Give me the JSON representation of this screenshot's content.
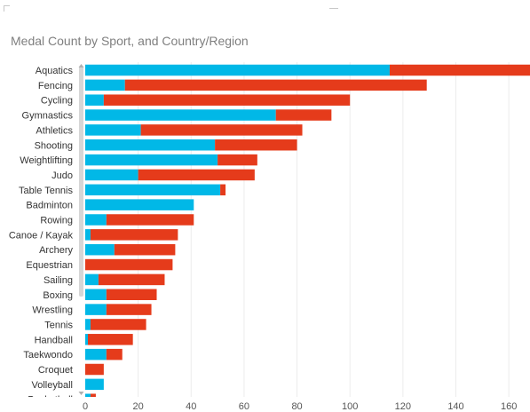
{
  "chart_data": {
    "type": "bar",
    "orientation": "horizontal",
    "stacked": true,
    "title": "Medal Count by Sport, and Country/Region",
    "categories": [
      "Aquatics",
      "Fencing",
      "Cycling",
      "Gymnastics",
      "Athletics",
      "Shooting",
      "Weightlifting",
      "Judo",
      "Table Tennis",
      "Badminton",
      "Rowing",
      "Canoe / Kayak",
      "Archery",
      "Equestrian",
      "Sailing",
      "Boxing",
      "Wrestling",
      "Tennis",
      "Handball",
      "Taekwondo",
      "Croquet",
      "Volleyball",
      "Basketball"
    ],
    "series": [
      {
        "values": [
          115,
          15,
          7,
          72,
          21,
          49,
          50,
          20,
          51,
          41,
          8,
          2,
          11,
          0,
          5,
          8,
          8,
          2,
          1,
          8,
          0,
          7,
          2
        ],
        "color": "#01b8e7"
      },
      {
        "values": [
          53,
          114,
          93,
          21,
          61,
          31,
          15,
          44,
          2,
          0,
          33,
          33,
          23,
          33,
          25,
          19,
          17,
          21,
          17,
          6,
          7,
          0,
          2
        ],
        "color": "#e53b1b"
      }
    ],
    "xlim": [
      0,
      168
    ],
    "xticks": [
      0,
      20,
      40,
      60,
      80,
      100,
      120,
      140,
      160
    ],
    "grid": true,
    "legend": "none"
  }
}
